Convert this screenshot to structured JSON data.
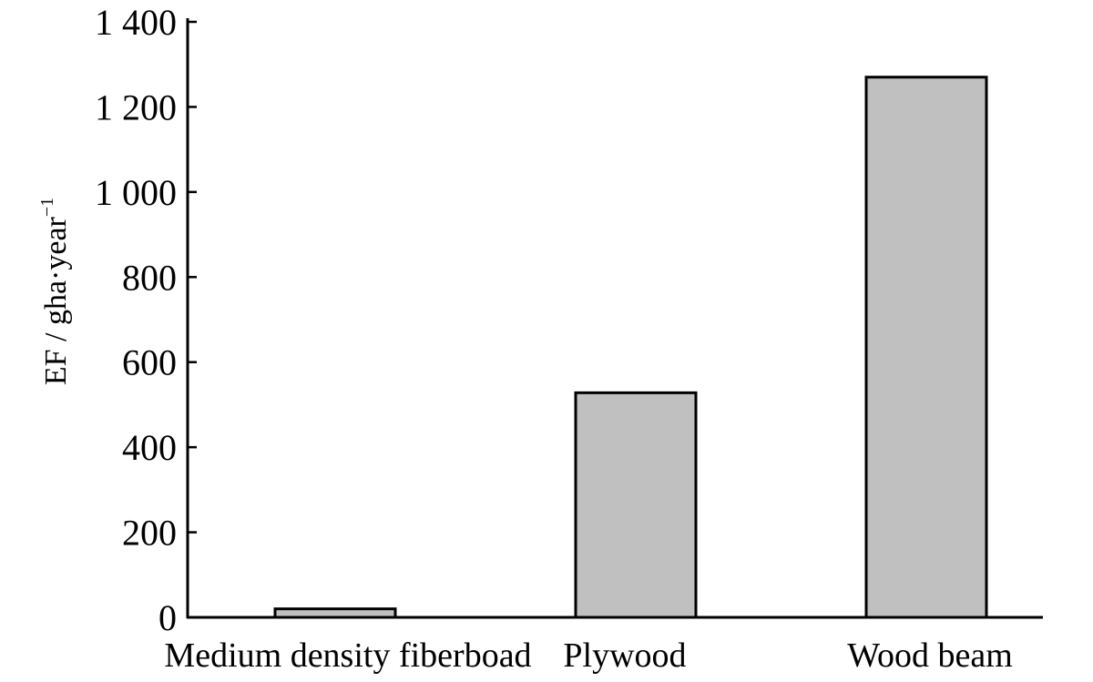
{
  "chart_data": {
    "type": "bar",
    "categories": [
      "Medium density fiberboad",
      "Plywood",
      "Wood beam"
    ],
    "values": [
      20,
      528,
      1270
    ],
    "ylabel": "EF / gha·year",
    "ylabel_superscript": "−1",
    "ylim": [
      0,
      1400
    ],
    "yticks": [
      0,
      200,
      400,
      600,
      800,
      1000,
      1200,
      1400
    ],
    "ytick_labels": [
      "0",
      "200",
      "400",
      "600",
      "800",
      "1 000",
      "1 200",
      "1 400"
    ],
    "bar_color": "#c0c0c0",
    "bar_edge_color": "#000000",
    "grid": false,
    "legend": "none"
  }
}
